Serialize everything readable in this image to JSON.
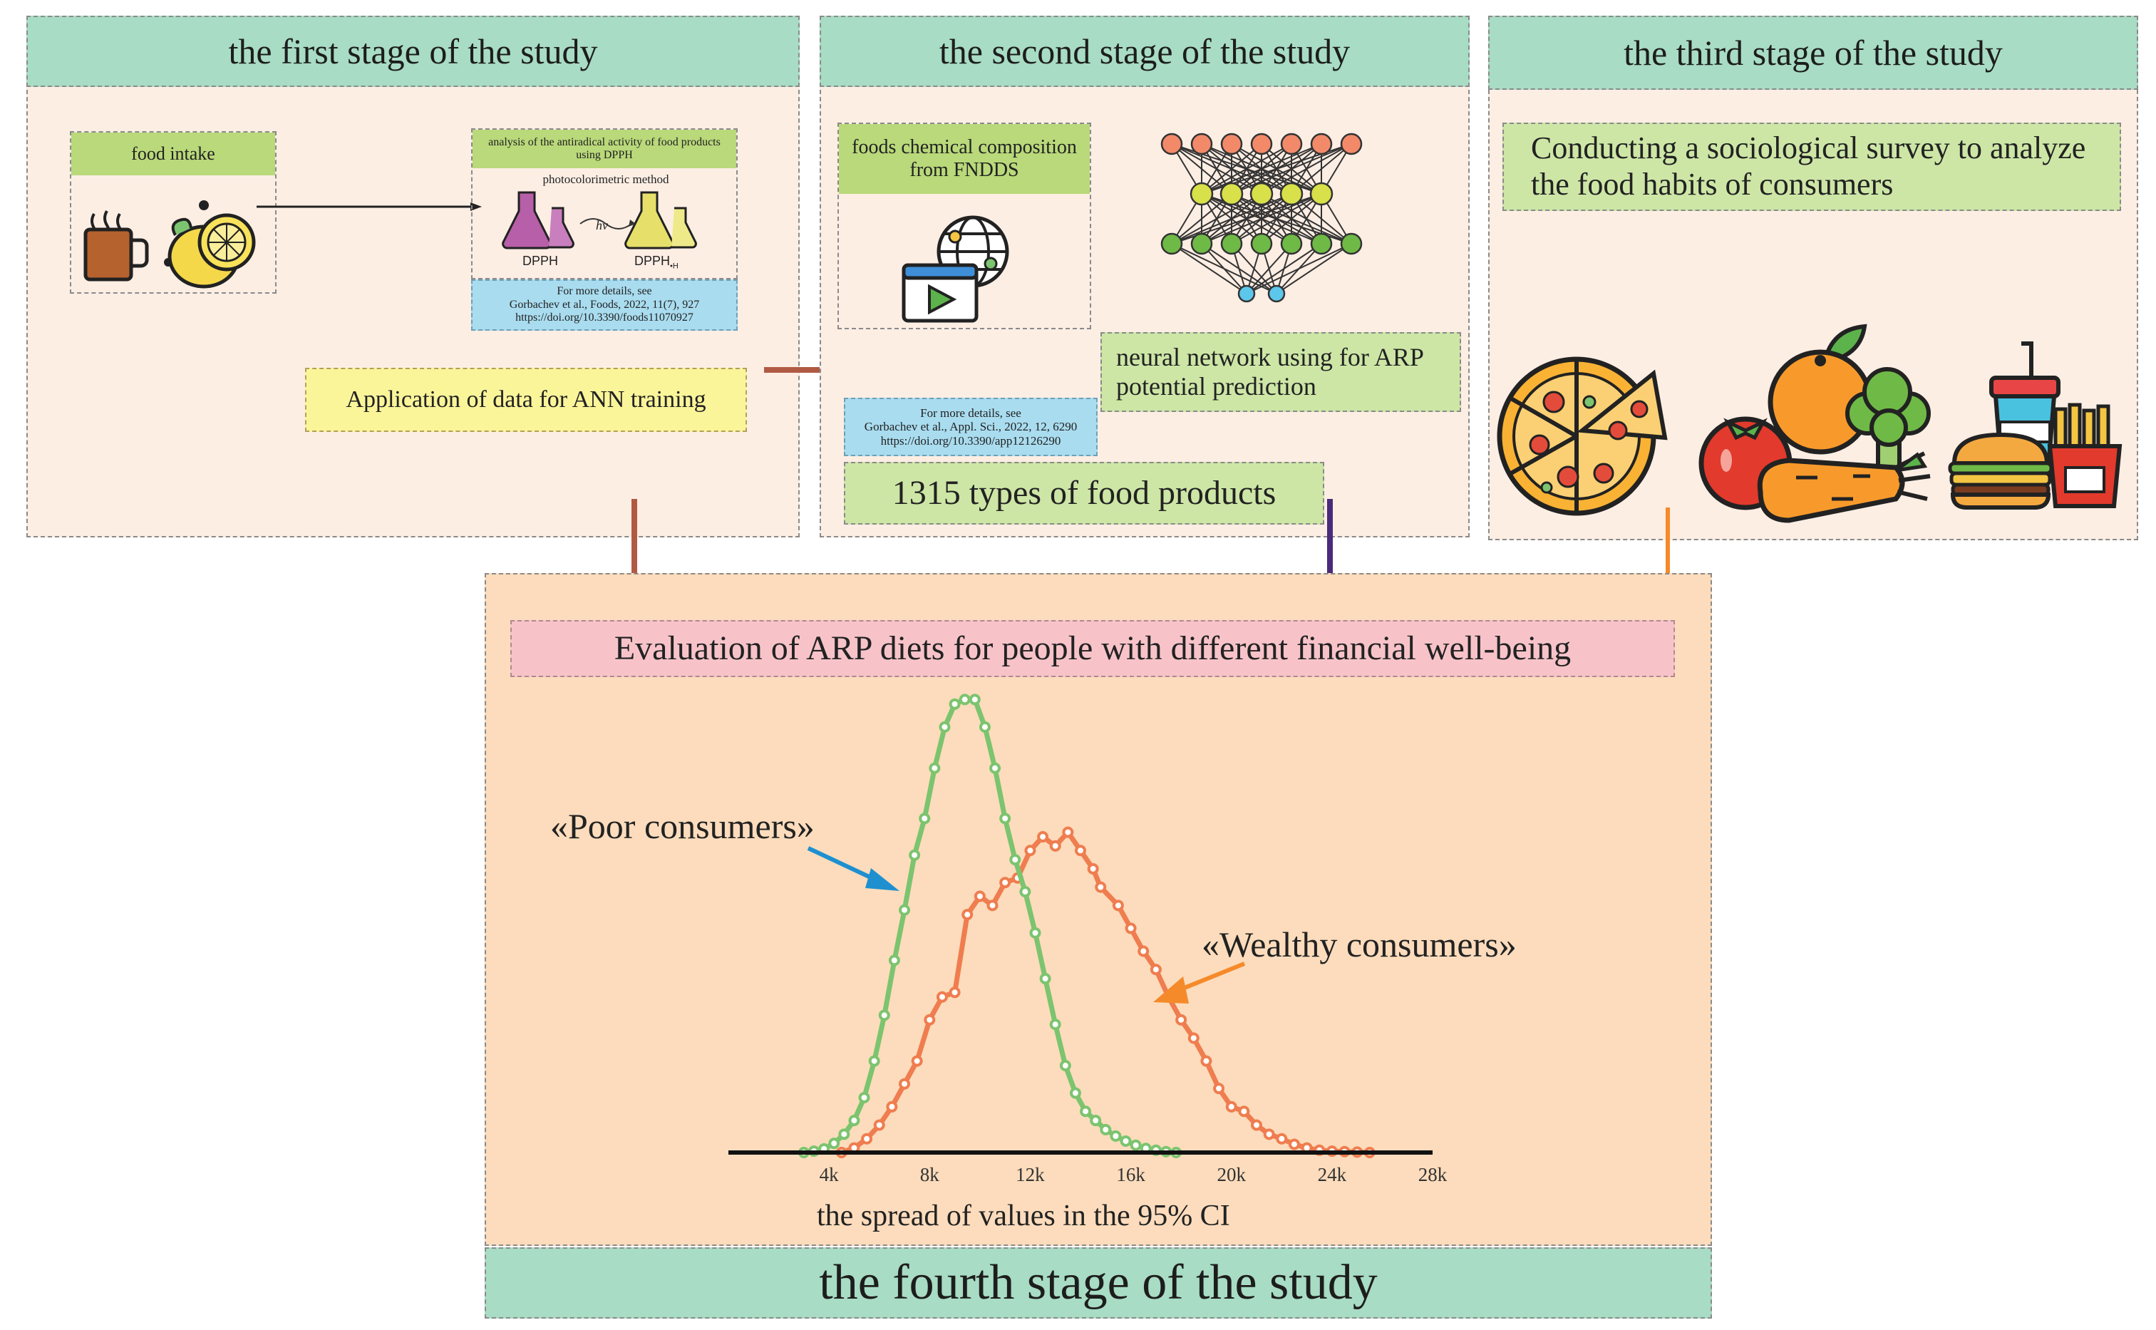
{
  "stages": {
    "first": {
      "title": "the first stage of the study",
      "food_intake": "food intake",
      "analysis_title": "analysis of the antiradical activity of food products using DPPH",
      "method": "photocolorimetric method",
      "reagent_left": "DPPH",
      "reagent_right": "DPPH",
      "reagent_right_sub": "•H",
      "hv": "hv",
      "ref_line1": "For more details, see",
      "ref_line2": "Gorbachev et al., Foods, 2022, 11(7), 927",
      "ref_line3": "https://doi.org/10.3390/foods11070927",
      "application": "Application of data for ANN training"
    },
    "second": {
      "title": "the second stage of the study",
      "composition": "foods chemical composition from FNDDS",
      "network_label": "neural network using for ARP potential prediction",
      "ref_line1": "For more details, see",
      "ref_line2": "Gorbachev et al., Appl. Sci., 2022, 12, 6290",
      "ref_line3": "https://doi.org/10.3390/app12126290",
      "products": "1315 types of food products"
    },
    "third": {
      "title": "the third stage of the study",
      "survey": "Conducting a sociological survey to analyze the food habits of consumers"
    },
    "fourth": {
      "title": "the fourth stage of the study",
      "evaluation": "Evaluation of ARP diets for people with different financial well-being"
    }
  },
  "colors": {
    "poor": "#7cc46f",
    "wealthy": "#ef7d4f",
    "arrow_first": "#b05a44",
    "arrow_second": "#4a2a7a",
    "arrow_third": "#f58a2a",
    "arrow_poor_label": "#1e90d0"
  },
  "icons": [
    "tea-cup-icon",
    "lemon-icon",
    "flask-icon",
    "globe-icon",
    "monitor-icon",
    "pizza-icon",
    "tomato-icon",
    "orange-icon",
    "carrot-icon",
    "broccoli-icon",
    "drink-icon",
    "burger-icon",
    "fries-icon"
  ],
  "chart_data": {
    "type": "line",
    "xlabel": "the spread of values in the 95% CI",
    "ylabel": "",
    "x_tick_labels": [
      "4k",
      "8k",
      "12k",
      "16k",
      "20k",
      "24k",
      "28k"
    ],
    "x_ticks": [
      4000,
      8000,
      12000,
      16000,
      20000,
      24000,
      28000
    ],
    "xlim": [
      0,
      28000
    ],
    "ylim": [
      0,
      1
    ],
    "grid": false,
    "legend": "annotations",
    "series": [
      {
        "name": "«Poor consumers»",
        "x": [
          3000,
          3400,
          3800,
          4200,
          4600,
          5000,
          5400,
          5800,
          6200,
          6600,
          7000,
          7400,
          7800,
          8200,
          8600,
          9000,
          9400,
          9800,
          10200,
          10600,
          11000,
          11400,
          11800,
          12200,
          12600,
          13000,
          13400,
          13800,
          14200,
          14600,
          15000,
          15400,
          15800,
          16200,
          16600,
          17000,
          17400,
          17800
        ],
        "values": [
          0.0,
          0.003,
          0.008,
          0.02,
          0.04,
          0.07,
          0.12,
          0.2,
          0.3,
          0.42,
          0.53,
          0.65,
          0.73,
          0.84,
          0.93,
          0.98,
          0.99,
          0.99,
          0.93,
          0.84,
          0.73,
          0.64,
          0.57,
          0.48,
          0.38,
          0.28,
          0.19,
          0.13,
          0.09,
          0.07,
          0.05,
          0.036,
          0.025,
          0.016,
          0.009,
          0.005,
          0.002,
          0.0
        ]
      },
      {
        "name": "«Wealthy consumers»",
        "x": [
          4500,
          5000,
          5500,
          6000,
          6500,
          7000,
          7500,
          8000,
          8500,
          9000,
          9500,
          10000,
          10500,
          11000,
          11500,
          12000,
          12500,
          13000,
          13500,
          14000,
          14500,
          14800,
          15500,
          16000,
          16500,
          17000,
          17500,
          18000,
          18500,
          19000,
          19500,
          20000,
          20500,
          21000,
          21500,
          22000,
          22500,
          23000,
          23500,
          24000,
          24500,
          25000,
          25500
        ],
        "values": [
          0.0,
          0.01,
          0.03,
          0.06,
          0.1,
          0.15,
          0.2,
          0.29,
          0.34,
          0.35,
          0.52,
          0.56,
          0.54,
          0.59,
          0.6,
          0.66,
          0.69,
          0.67,
          0.7,
          0.66,
          0.62,
          0.58,
          0.54,
          0.49,
          0.44,
          0.4,
          0.34,
          0.29,
          0.25,
          0.2,
          0.14,
          0.1,
          0.09,
          0.06,
          0.04,
          0.03,
          0.018,
          0.01,
          0.005,
          0.003,
          0.002,
          0.001,
          0.0
        ]
      }
    ],
    "annotations": [
      "«Poor consumers»",
      "«Wealthy consumers»"
    ]
  }
}
